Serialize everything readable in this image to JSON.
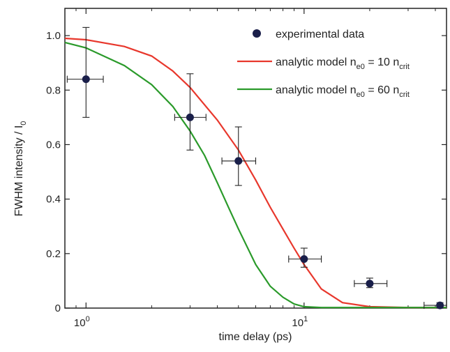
{
  "chart_data": {
    "type": "scatter",
    "xscale": "log",
    "xlim": [
      0.8,
      45
    ],
    "ylim": [
      0,
      1.1
    ],
    "grid": false,
    "legend_position": "top-right",
    "xlabel": "time delay (ps)",
    "ylabel": {
      "main": "FWHM intensity / I",
      "sub": "0"
    },
    "x_ticks": [
      {
        "value": 1,
        "base": "10",
        "exp": "0"
      },
      {
        "value": 10,
        "base": "10",
        "exp": "1"
      }
    ],
    "y_ticks": [
      {
        "value": 0,
        "label": "0"
      },
      {
        "value": 0.2,
        "label": "0.2"
      },
      {
        "value": 0.4,
        "label": "0.4"
      },
      {
        "value": 0.6,
        "label": "0.6"
      },
      {
        "value": 0.8,
        "label": "0.8"
      },
      {
        "value": 1.0,
        "label": "1.0"
      }
    ],
    "points": {
      "name": "experimental data",
      "color": "#1a1f4a",
      "data": [
        {
          "x": 1,
          "y": 0.84,
          "xerr": [
            0.82,
            1.2
          ],
          "yerr": [
            0.7,
            1.03
          ]
        },
        {
          "x": 3,
          "y": 0.7,
          "xerr": [
            2.55,
            3.55
          ],
          "yerr": [
            0.58,
            0.86
          ]
        },
        {
          "x": 5,
          "y": 0.54,
          "xerr": [
            4.2,
            6.0
          ],
          "yerr": [
            0.45,
            0.665
          ]
        },
        {
          "x": 10,
          "y": 0.18,
          "xerr": [
            8.5,
            12.0
          ],
          "yerr": [
            0.15,
            0.22
          ]
        },
        {
          "x": 20,
          "y": 0.09,
          "xerr": [
            17.0,
            24.0
          ],
          "yerr": [
            0.075,
            0.11
          ]
        },
        {
          "x": 42,
          "y": 0.01,
          "xerr": [
            35.5,
            50
          ],
          "yerr": [
            0.0,
            0.02
          ]
        }
      ]
    },
    "series": [
      {
        "name_parts": [
          "analytic model n",
          "e0",
          " = 10 n",
          "crit"
        ],
        "color": "#e8372c",
        "x": [
          0.8,
          1,
          1.5,
          2,
          2.5,
          3,
          4,
          5,
          6,
          7,
          8,
          9,
          10,
          12,
          15,
          20,
          30,
          45
        ],
        "y": [
          0.99,
          0.985,
          0.96,
          0.925,
          0.87,
          0.81,
          0.69,
          0.58,
          0.47,
          0.37,
          0.29,
          0.22,
          0.16,
          0.07,
          0.02,
          0.005,
          0.002,
          0.002
        ]
      },
      {
        "name_parts": [
          "analytic model n",
          "e0",
          " = 60 n",
          "crit"
        ],
        "color": "#2a9a2a",
        "x": [
          0.8,
          1,
          1.5,
          2,
          2.5,
          3,
          3.5,
          4,
          4.5,
          5,
          6,
          7,
          8,
          9,
          10,
          12,
          15,
          20,
          30,
          45
        ],
        "y": [
          0.975,
          0.955,
          0.89,
          0.82,
          0.74,
          0.65,
          0.56,
          0.46,
          0.37,
          0.29,
          0.16,
          0.08,
          0.04,
          0.015,
          0.005,
          0.002,
          0.002,
          0.002,
          0.002,
          0.002
        ]
      }
    ]
  }
}
